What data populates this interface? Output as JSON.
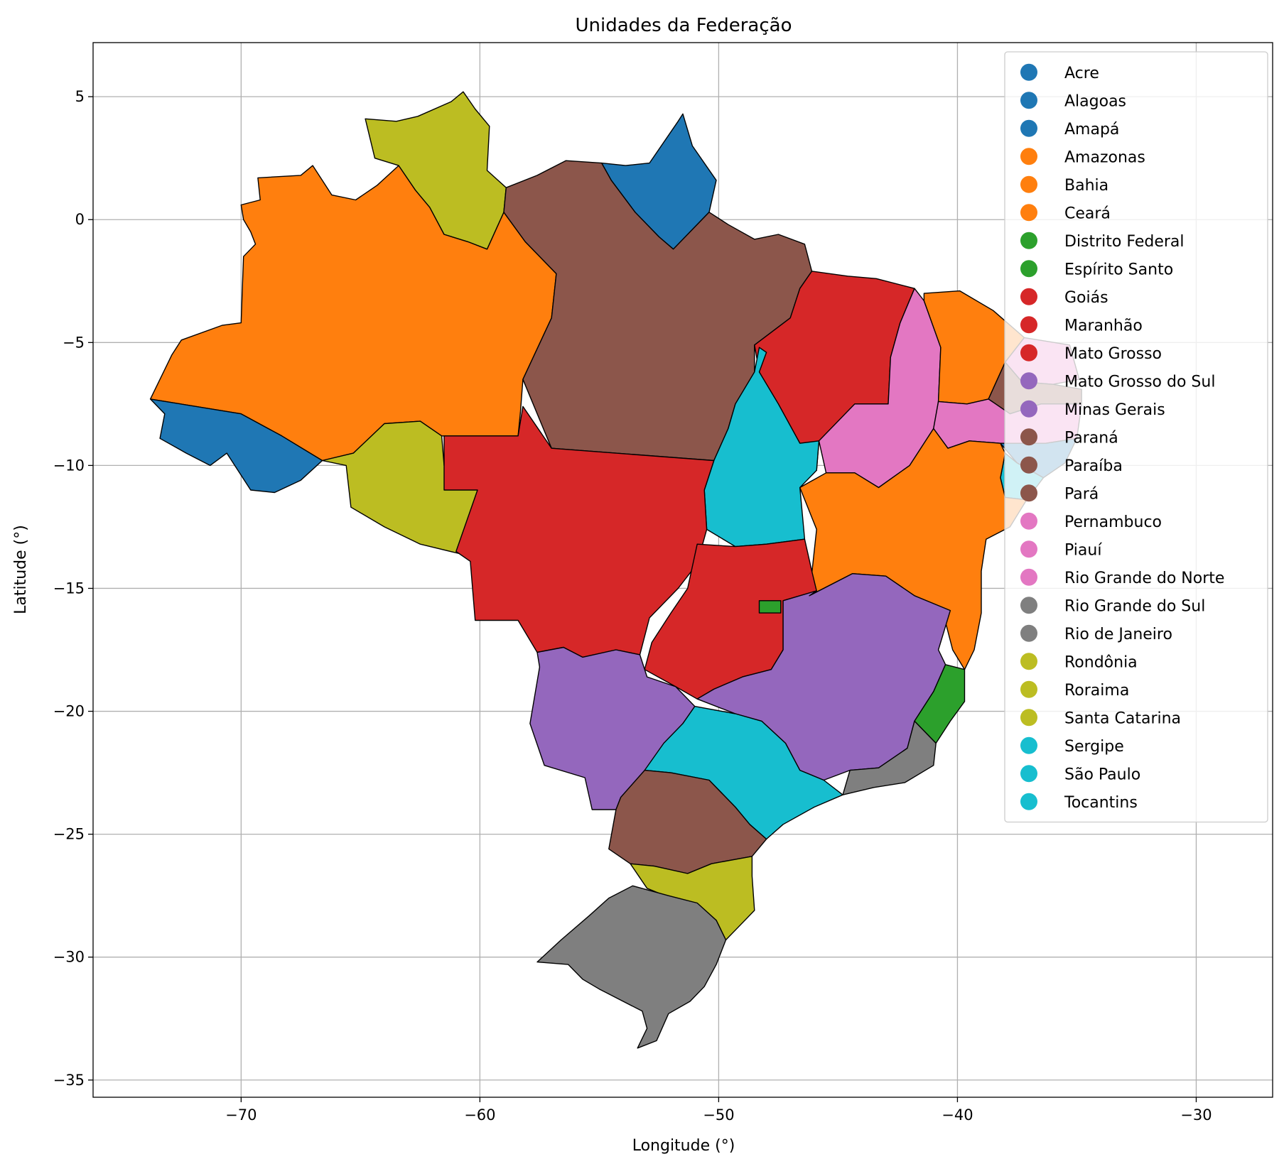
{
  "chart_data": {
    "type": "map",
    "title": "Unidades da Federação",
    "xlabel": "Longitude (°)",
    "ylabel": "Latitude (°)",
    "xlim": [
      -76.2,
      -26.8
    ],
    "ylim": [
      -35.7,
      7.2
    ],
    "xticks": [
      -70,
      -60,
      -50,
      -40,
      -30
    ],
    "yticks": [
      5,
      0,
      -5,
      -10,
      -15,
      -20,
      -25,
      -30,
      -35
    ],
    "grid": true,
    "legend_position": "top-right",
    "colors": {
      "blue": "#1f77b4",
      "orange": "#ff7f0e",
      "green": "#2ca02c",
      "red": "#d62728",
      "purple": "#9467bd",
      "brown": "#8c564b",
      "pink": "#e377c2",
      "gray": "#7f7f7f",
      "olive": "#bcbd22",
      "cyan": "#17becf"
    },
    "states": [
      {
        "name": "Acre",
        "color": "#1f77b4"
      },
      {
        "name": "Alagoas",
        "color": "#1f77b4"
      },
      {
        "name": "Amapá",
        "color": "#1f77b4"
      },
      {
        "name": "Amazonas",
        "color": "#ff7f0e"
      },
      {
        "name": "Bahia",
        "color": "#ff7f0e"
      },
      {
        "name": "Ceará",
        "color": "#ff7f0e"
      },
      {
        "name": "Distrito Federal",
        "color": "#2ca02c"
      },
      {
        "name": "Espírito Santo",
        "color": "#2ca02c"
      },
      {
        "name": "Goiás",
        "color": "#d62728"
      },
      {
        "name": "Maranhão",
        "color": "#d62728"
      },
      {
        "name": "Mato Grosso",
        "color": "#d62728"
      },
      {
        "name": "Mato Grosso do Sul",
        "color": "#9467bd"
      },
      {
        "name": "Minas Gerais",
        "color": "#9467bd"
      },
      {
        "name": "Paraná",
        "color": "#8c564b"
      },
      {
        "name": "Paraíba",
        "color": "#8c564b"
      },
      {
        "name": "Pará",
        "color": "#8c564b"
      },
      {
        "name": "Pernambuco",
        "color": "#e377c2"
      },
      {
        "name": "Piauí",
        "color": "#e377c2"
      },
      {
        "name": "Rio Grande do Norte",
        "color": "#e377c2"
      },
      {
        "name": "Rio Grande do Sul",
        "color": "#7f7f7f"
      },
      {
        "name": "Rio de Janeiro",
        "color": "#7f7f7f"
      },
      {
        "name": "Rondônia",
        "color": "#bcbd22"
      },
      {
        "name": "Roraima",
        "color": "#bcbd22"
      },
      {
        "name": "Santa Catarina",
        "color": "#bcbd22"
      },
      {
        "name": "Sergipe",
        "color": "#17becf"
      },
      {
        "name": "São Paulo",
        "color": "#17becf"
      },
      {
        "name": "Tocantins",
        "color": "#17becf"
      }
    ]
  }
}
